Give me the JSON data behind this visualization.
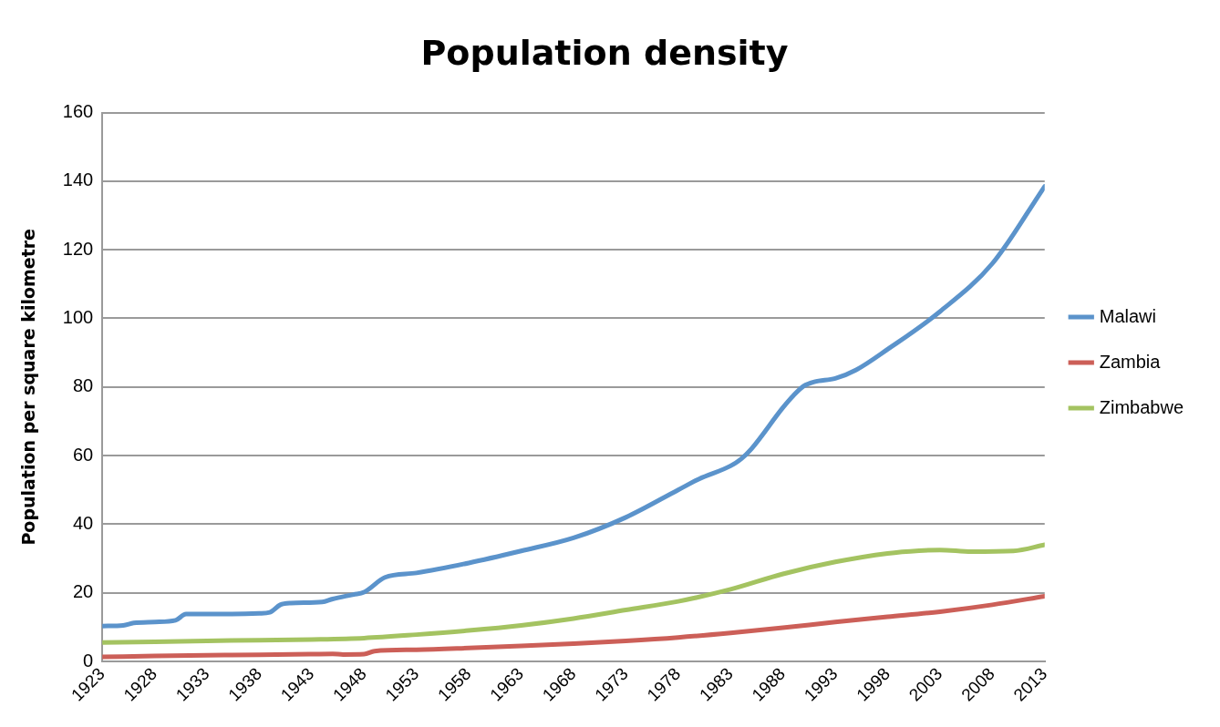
{
  "chart_data": {
    "type": "line",
    "title": "Population density",
    "ylabel": "Population per square kilometre",
    "xlim": [
      1923,
      2013
    ],
    "xticks": [
      1923,
      1928,
      1933,
      1938,
      1943,
      1948,
      1953,
      1958,
      1963,
      1968,
      1973,
      1978,
      1983,
      1988,
      1993,
      1998,
      2003,
      2008,
      2013
    ],
    "ylim": [
      0,
      160
    ],
    "yticks": [
      0,
      20,
      40,
      60,
      80,
      100,
      120,
      140,
      160
    ],
    "grid": "y",
    "legend": "right",
    "marker": "none",
    "line_style": "solid",
    "series": [
      {
        "name": "Malawi",
        "color": "#5b93cb",
        "x": [
          1923,
          1925,
          1926,
          1928,
          1930,
          1931,
          1935,
          1938,
          1939,
          1940,
          1941,
          1944,
          1945,
          1947,
          1948,
          1950,
          1953,
          1958,
          1963,
          1968,
          1973,
          1978,
          1980,
          1983,
          1984,
          1985,
          1988,
          1989,
          1990,
          1991,
          1993,
          1995,
          1998,
          2003,
          2008,
          2013
        ],
        "values": [
          10.3,
          10.5,
          11.2,
          11.5,
          12,
          13.8,
          13.8,
          14,
          14.3,
          16.5,
          17,
          17.3,
          18.2,
          19.5,
          20.2,
          24.5,
          25.8,
          28.7,
          32.2,
          36,
          42,
          50,
          53.2,
          57,
          59,
          62,
          74,
          77.5,
          80.3,
          81.5,
          82.5,
          85,
          91,
          102,
          116,
          138.5
        ]
      },
      {
        "name": "Zambia",
        "color": "#cc5f58",
        "x": [
          1923,
          1928,
          1933,
          1938,
          1943,
          1945,
          1946,
          1948,
          1949,
          1953,
          1958,
          1963,
          1968,
          1973,
          1978,
          1983,
          1988,
          1993,
          1998,
          2003,
          2008,
          2013
        ],
        "values": [
          1.3,
          1.6,
          1.8,
          1.9,
          2.1,
          2.2,
          2,
          2.1,
          3,
          3.4,
          3.9,
          4.5,
          5.2,
          6,
          7,
          8.3,
          9.8,
          11.5,
          13,
          14.5,
          16.5,
          19
        ]
      },
      {
        "name": "Zimbabwe",
        "color": "#a4c361",
        "x": [
          1923,
          1928,
          1933,
          1938,
          1943,
          1948,
          1953,
          1958,
          1963,
          1968,
          1973,
          1978,
          1983,
          1988,
          1993,
          1998,
          2001,
          2003,
          2006,
          2010,
          2013
        ],
        "values": [
          5.5,
          5.7,
          6,
          6.2,
          6.4,
          6.8,
          7.8,
          9,
          10.5,
          12.5,
          15,
          17.5,
          21,
          25.5,
          29,
          31.5,
          32.3,
          32.5,
          32,
          32.2,
          34
        ]
      }
    ]
  }
}
